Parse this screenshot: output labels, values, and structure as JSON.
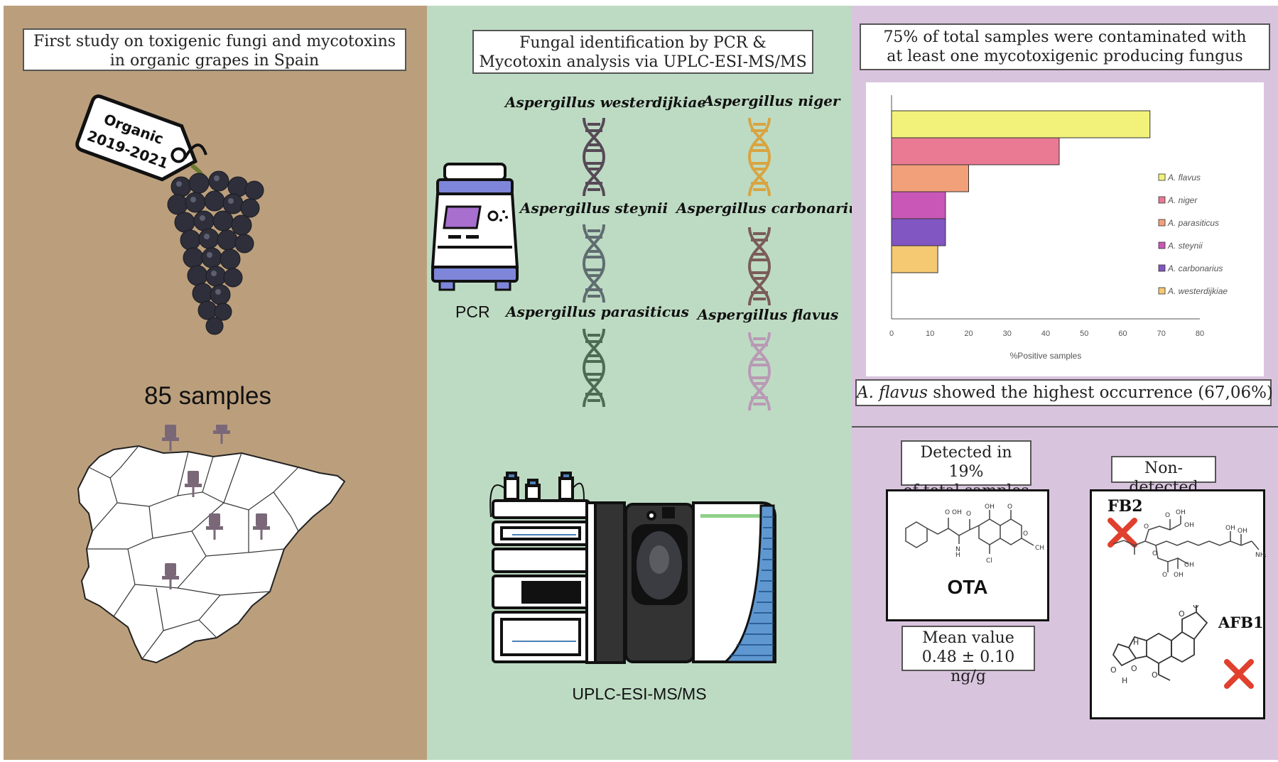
{
  "panel_left": {
    "title_line1": "First study on toxigenic fungi and mycotoxins",
    "title_line2": "in organic grapes in Spain",
    "tag_line1": "Organic",
    "tag_line2": "2019-2021",
    "samples_label": "85 samples",
    "map_pins": 6,
    "colors": {
      "background": "#bb9f7d",
      "pin": "#7a6878",
      "grape": "#2e2f3a"
    }
  },
  "panel_middle": {
    "title_line1": "Fungal identification by PCR &",
    "title_line2": "Mycotoxin analysis via UPLC-ESI-MS/MS",
    "pcr_label": "PCR",
    "uplc_label": "UPLC-ESI-MS/MS",
    "species": [
      {
        "name": "Aspergillus westerdijkiae",
        "color": "#574956"
      },
      {
        "name": "Aspergillus niger",
        "color": "#d9a441"
      },
      {
        "name": "Aspergillus steynii",
        "color": "#5f6c70"
      },
      {
        "name": "Aspergillus carbonarius",
        "color": "#7a5c58"
      },
      {
        "name": "Aspergillus parasiticus",
        "color": "#4d6a55"
      },
      {
        "name": "Aspergillus flavus",
        "color": "#b99ab5"
      }
    ],
    "colors": {
      "background": "#bddbc3"
    }
  },
  "panel_right": {
    "title_line1": "75% of total samples were contaminated with",
    "title_line2": "at least one mycotoxigenic producing fungus",
    "highlight_italic": "A. flavus",
    "highlight_rest": " showed the highest occurrence (67,06%)",
    "detected_line1": "Detected in 19%",
    "detected_line2": "of total samples",
    "ota_label": "OTA",
    "mean_line1": "Mean value",
    "mean_line2": "0.48 ± 0.10 ng/g",
    "nondetected_label": "Non-detected",
    "fb2_label": "FB2",
    "afb1_label": "AFB1",
    "colors": {
      "background": "#d9c4de",
      "cross": "#e0402d"
    }
  },
  "chart_data": {
    "type": "bar",
    "orientation": "horizontal",
    "categories": [
      "A. flavus",
      "A. niger",
      "A. parasiticus",
      "A. steynii",
      "A. carbonarius",
      "A. westerdijkiae"
    ],
    "values": [
      67.06,
      43.5,
      20,
      14,
      14,
      12
    ],
    "colors": [
      "#f2f27a",
      "#ea7a93",
      "#f2a07a",
      "#c957b7",
      "#8256c2",
      "#f5c872"
    ],
    "xlabel": "%Positive samples",
    "ylabel": "",
    "xlim": [
      0,
      80
    ],
    "xticks": [
      "0",
      "10",
      "20",
      "30",
      "40",
      "50",
      "60",
      "70",
      "80"
    ],
    "legend_position": "right",
    "grid": false
  }
}
